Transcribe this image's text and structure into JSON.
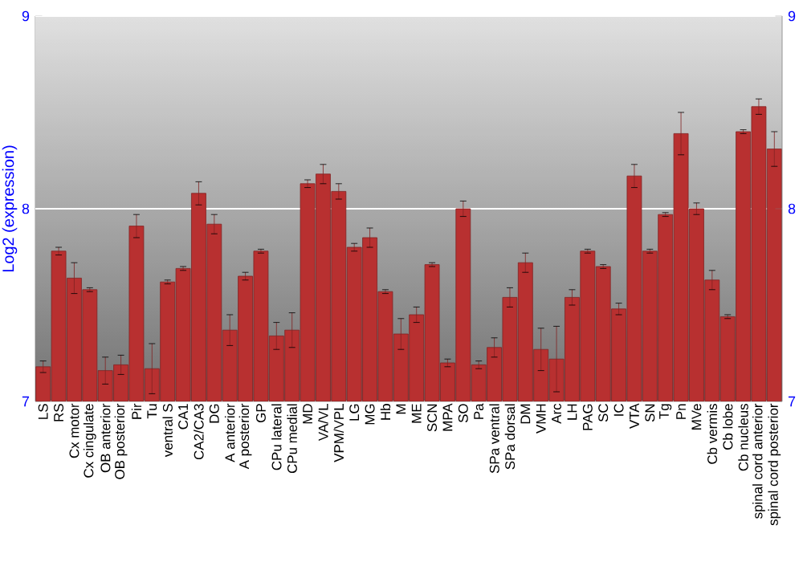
{
  "chart_data": {
    "type": "bar",
    "ylabel": "Log2 (expression)",
    "categories": [
      "LS",
      "RS",
      "Cx motor",
      "Cx cingulate",
      "OB anterior",
      "OB posterior",
      "Pir",
      "Tu",
      "ventral S",
      "CA1",
      "CA2/CA3",
      "DG",
      "A anterior",
      "A posterior",
      "GP",
      "CPu lateral",
      "CPu medial",
      "MD",
      "VA/VL",
      "VPM/VPL",
      "LG",
      "MG",
      "Hb",
      "M",
      "ME",
      "SCN",
      "MPA",
      "SO",
      "Pa",
      "SPa ventral",
      "SPa dorsal",
      "DM",
      "VMH",
      "Arc",
      "LH",
      "PAG",
      "SC",
      "IC",
      "VTA",
      "SN",
      "Tg",
      "Pn",
      "MVe",
      "Cb vermis",
      "Cb lobe",
      "Cb nucleus",
      "spinal cord anterior",
      "spinal cord posterior"
    ],
    "values": [
      7.18,
      7.78,
      7.64,
      7.58,
      7.16,
      7.19,
      7.91,
      7.17,
      7.62,
      7.69,
      8.08,
      7.92,
      7.37,
      7.65,
      7.78,
      7.34,
      7.37,
      8.13,
      8.18,
      8.09,
      7.8,
      7.85,
      7.57,
      7.35,
      7.45,
      7.71,
      7.2,
      8.0,
      7.19,
      7.28,
      7.54,
      7.72,
      7.27,
      7.22,
      7.54,
      7.78,
      7.7,
      7.48,
      8.17,
      7.78,
      7.97,
      8.39,
      8.0,
      7.63,
      7.44,
      8.4,
      8.53,
      8.31
    ],
    "errors": [
      0.03,
      0.02,
      0.08,
      0.01,
      0.07,
      0.05,
      0.06,
      0.13,
      0.01,
      0.01,
      0.06,
      0.05,
      0.08,
      0.02,
      0.01,
      0.07,
      0.09,
      0.02,
      0.05,
      0.04,
      0.02,
      0.05,
      0.01,
      0.08,
      0.04,
      0.01,
      0.02,
      0.04,
      0.02,
      0.05,
      0.05,
      0.05,
      0.11,
      0.17,
      0.04,
      0.01,
      0.01,
      0.03,
      0.06,
      0.01,
      0.01,
      0.11,
      0.03,
      0.05,
      0.01,
      0.01,
      0.04,
      0.09
    ],
    "color": "#b83030",
    "ylim": [
      7,
      9
    ],
    "yticks": [
      7,
      8,
      9
    ],
    "y2lim": [
      7,
      9
    ],
    "y2ticks": [
      7,
      8,
      9
    ],
    "grid": "y"
  }
}
